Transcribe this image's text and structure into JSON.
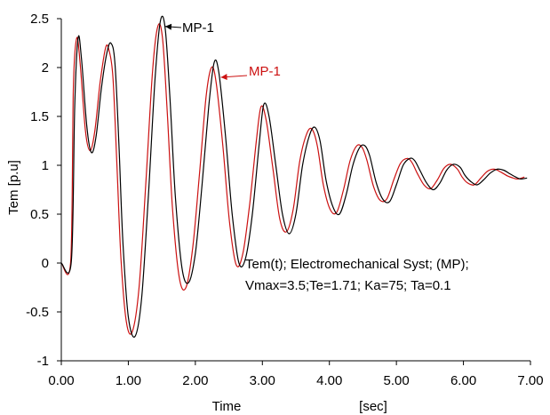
{
  "chart_data": {
    "type": "line",
    "xlabel": "Time",
    "xunit": "[sec]",
    "ylabel": "Tem [p.u]",
    "xlim": [
      0,
      7
    ],
    "ylim": [
      -1,
      2.5
    ],
    "xticks": [
      "0.00",
      "1.00",
      "2.00",
      "3.00",
      "4.00",
      "5.00",
      "6.00",
      "7.00"
    ],
    "yticks": [
      "-1",
      "-0.5",
      "0",
      "0.5",
      "1",
      "1.5",
      "2",
      "2.5"
    ],
    "grid": false,
    "series": [
      {
        "name": "MP-1",
        "color": "#000000",
        "x": [
          0,
          0.15,
          0.2,
          0.25,
          0.3,
          0.38,
          0.45,
          0.52,
          0.6,
          0.68,
          0.74,
          0.8,
          0.86,
          0.92,
          1.0,
          1.1,
          1.2,
          1.3,
          1.4,
          1.48,
          1.55,
          1.62,
          1.7,
          1.8,
          1.9,
          2.0,
          2.1,
          2.2,
          2.28,
          2.35,
          2.45,
          2.55,
          2.65,
          2.75,
          2.85,
          2.95,
          3.02,
          3.1,
          3.2,
          3.3,
          3.4,
          3.5,
          3.6,
          3.7,
          3.78,
          3.86,
          3.95,
          4.05,
          4.15,
          4.25,
          4.35,
          4.45,
          4.53,
          4.6,
          4.7,
          4.8,
          4.9,
          5.0,
          5.1,
          5.2,
          5.27,
          5.35,
          5.45,
          5.55,
          5.65,
          5.75,
          5.85,
          5.95,
          6.02,
          6.1,
          6.2,
          6.3,
          6.4,
          6.5,
          6.6,
          6.7,
          6.78,
          6.85,
          6.95
        ],
        "y": [
          0,
          0.02,
          1.6,
          2.3,
          2.1,
          1.4,
          1.13,
          1.3,
          1.8,
          2.15,
          2.25,
          2.05,
          1.2,
          0.2,
          -0.55,
          -0.75,
          -0.35,
          0.7,
          1.9,
          2.48,
          2.4,
          1.7,
          0.7,
          -0.05,
          -0.2,
          0.1,
          0.8,
          1.6,
          2.05,
          1.95,
          1.3,
          0.5,
          0.0,
          0.05,
          0.5,
          1.2,
          1.62,
          1.5,
          1.0,
          0.5,
          0.3,
          0.5,
          1.0,
          1.3,
          1.39,
          1.25,
          0.85,
          0.58,
          0.5,
          0.7,
          1.0,
          1.18,
          1.2,
          1.1,
          0.82,
          0.65,
          0.63,
          0.8,
          1.0,
          1.07,
          1.05,
          0.95,
          0.82,
          0.75,
          0.82,
          0.95,
          1.01,
          0.98,
          0.9,
          0.84,
          0.8,
          0.85,
          0.92,
          0.96,
          0.95,
          0.91,
          0.88,
          0.86,
          0.87
        ]
      },
      {
        "name": "MP-1",
        "color": "#cc1111",
        "x": [
          0,
          0.14,
          0.18,
          0.23,
          0.28,
          0.36,
          0.43,
          0.5,
          0.58,
          0.66,
          0.71,
          0.77,
          0.83,
          0.89,
          0.97,
          1.06,
          1.16,
          1.26,
          1.36,
          1.44,
          1.51,
          1.58,
          1.66,
          1.76,
          1.86,
          1.96,
          2.06,
          2.16,
          2.24,
          2.31,
          2.41,
          2.51,
          2.61,
          2.71,
          2.81,
          2.91,
          2.98,
          3.06,
          3.16,
          3.26,
          3.36,
          3.46,
          3.56,
          3.66,
          3.74,
          3.82,
          3.91,
          4.01,
          4.11,
          4.21,
          4.31,
          4.41,
          4.49,
          4.56,
          4.66,
          4.76,
          4.86,
          4.96,
          5.06,
          5.16,
          5.23,
          5.31,
          5.41,
          5.51,
          5.61,
          5.71,
          5.81,
          5.91,
          5.98,
          6.06,
          6.16,
          6.26,
          6.36,
          6.46,
          6.56,
          6.66,
          6.74,
          6.81,
          6.91
        ],
        "y": [
          0,
          0.02,
          1.8,
          2.3,
          2.05,
          1.35,
          1.15,
          1.35,
          1.85,
          2.2,
          2.18,
          1.9,
          1.0,
          0.05,
          -0.6,
          -0.7,
          -0.25,
          0.8,
          1.95,
          2.42,
          2.3,
          1.55,
          0.55,
          -0.15,
          -0.25,
          0.15,
          0.9,
          1.7,
          2.0,
          1.85,
          1.2,
          0.42,
          -0.02,
          0.1,
          0.6,
          1.25,
          1.6,
          1.45,
          0.95,
          0.45,
          0.32,
          0.55,
          1.05,
          1.32,
          1.37,
          1.2,
          0.8,
          0.55,
          0.52,
          0.75,
          1.05,
          1.2,
          1.18,
          1.05,
          0.78,
          0.64,
          0.66,
          0.85,
          1.02,
          1.07,
          1.03,
          0.92,
          0.8,
          0.76,
          0.85,
          0.97,
          1.01,
          0.96,
          0.88,
          0.82,
          0.8,
          0.87,
          0.94,
          0.96,
          0.93,
          0.89,
          0.87,
          0.86,
          0.88
        ]
      }
    ],
    "annotations": [
      {
        "text": "MP-1",
        "color": "#000000",
        "at_x": 1.55,
        "at_y": 2.42
      },
      {
        "text": "MP-1",
        "color": "#cc1111",
        "at_x": 2.38,
        "at_y": 1.9
      }
    ],
    "note_lines": [
      "Tem(t); Electromechanical Syst; (MP);",
      "Vmax=3.5;Te=1.71; Ka=75; Ta=0.1"
    ]
  }
}
